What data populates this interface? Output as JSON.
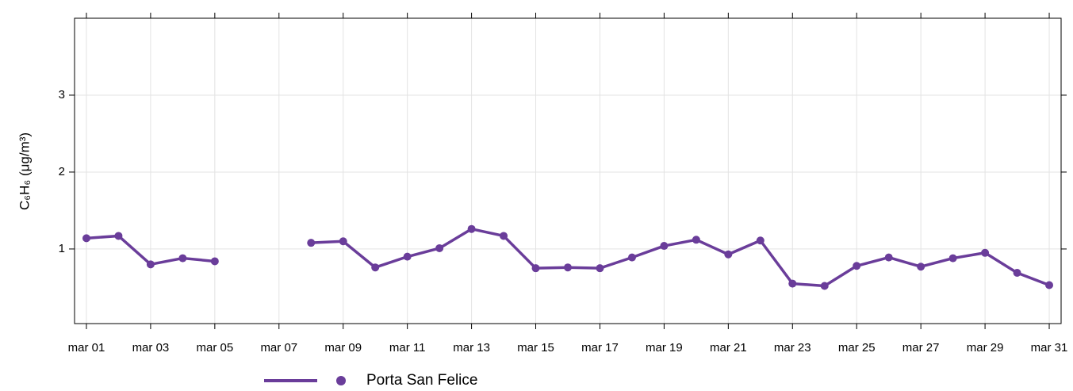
{
  "chart_data": {
    "type": "line",
    "y_label": "C₆H₆ (μg/m³)",
    "categories": [
      "mar 01",
      null,
      "mar 03",
      null,
      "mar 05",
      null,
      "mar 07",
      null,
      "mar 09",
      null,
      "mar 11",
      null,
      "mar 13",
      null,
      "mar 15",
      null,
      "mar 17",
      null,
      "mar 19",
      null,
      "mar 21",
      null,
      "mar 23",
      null,
      "mar 25",
      null,
      "mar 27",
      null,
      "mar 29",
      null,
      "mar 31"
    ],
    "series": [
      {
        "name": "Porta San Felice",
        "color": "#6a3d9a",
        "values": [
          1.14,
          1.17,
          0.8,
          0.88,
          0.84,
          null,
          null,
          1.08,
          1.1,
          0.76,
          0.9,
          1.01,
          1.26,
          1.17,
          0.75,
          0.76,
          0.75,
          0.89,
          1.04,
          1.12,
          0.93,
          1.11,
          0.55,
          0.52,
          0.78,
          0.89,
          0.77,
          0.88,
          0.95,
          0.69,
          0.53
        ]
      }
    ],
    "ylim": [
      0.03,
      4.0
    ],
    "yticks": [
      1,
      2,
      3
    ],
    "grid": true
  }
}
